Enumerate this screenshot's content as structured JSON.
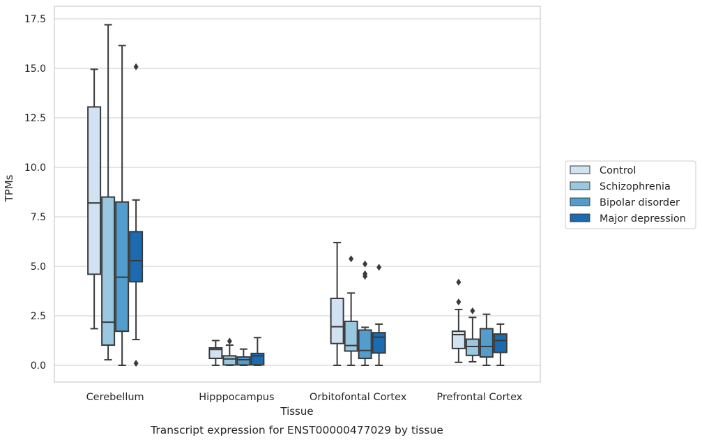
{
  "caption": "Transcript expression for ENST00000477029 by tissue",
  "chart_data": {
    "type": "box",
    "xlabel": "Tissue",
    "ylabel": "TPMs",
    "ylim": [
      -0.8,
      18.1
    ],
    "yticks": [
      0.0,
      2.5,
      5.0,
      7.5,
      10.0,
      12.5,
      15.0,
      17.5
    ],
    "ytick_labels": [
      "0.0",
      "2.5",
      "5.0",
      "7.5",
      "10.0",
      "12.5",
      "15.0",
      "17.5"
    ],
    "grid": "horizontal",
    "legend_position": "right",
    "categories": [
      "Cerebellum",
      "Hipppocampus",
      "Orbitofontal Cortex",
      "Prefrontal Cortex"
    ],
    "series": [
      {
        "name": "Control",
        "color": "#d1e3f3",
        "boxes": [
          {
            "whislo": 1.85,
            "q1": 4.6,
            "med": 8.2,
            "q3": 13.05,
            "whishi": 14.95,
            "fliers": []
          },
          {
            "whislo": 0.0,
            "q1": 0.35,
            "med": 0.8,
            "q3": 0.88,
            "whishi": 1.25,
            "fliers": []
          },
          {
            "whislo": 0.0,
            "q1": 1.1,
            "med": 1.95,
            "q3": 3.38,
            "whishi": 6.2,
            "fliers": []
          },
          {
            "whislo": 0.15,
            "q1": 0.85,
            "med": 1.55,
            "q3": 1.72,
            "whishi": 2.82,
            "fliers": [
              3.2,
              4.2
            ]
          }
        ]
      },
      {
        "name": "Schizophrenia",
        "color": "#9ac8e1",
        "boxes": [
          {
            "whislo": 0.28,
            "q1": 1.02,
            "med": 2.18,
            "q3": 8.5,
            "whishi": 17.2,
            "fliers": []
          },
          {
            "whislo": 0.0,
            "q1": 0.02,
            "med": 0.32,
            "q3": 0.48,
            "whishi": 1.02,
            "fliers": [
              1.22
            ]
          },
          {
            "whislo": 0.0,
            "q1": 0.72,
            "med": 1.0,
            "q3": 2.22,
            "whishi": 3.65,
            "fliers": [
              5.38
            ]
          },
          {
            "whislo": 0.18,
            "q1": 0.5,
            "med": 0.95,
            "q3": 1.32,
            "whishi": 2.42,
            "fliers": [
              2.75
            ]
          }
        ]
      },
      {
        "name": "Bipolar disorder",
        "color": "#529dcc",
        "boxes": [
          {
            "whislo": 0.0,
            "q1": 1.72,
            "med": 4.45,
            "q3": 8.25,
            "whishi": 16.15,
            "fliers": []
          },
          {
            "whislo": 0.0,
            "q1": 0.02,
            "med": 0.28,
            "q3": 0.42,
            "whishi": 0.82,
            "fliers": []
          },
          {
            "whislo": 0.0,
            "q1": 0.35,
            "med": 0.75,
            "q3": 1.78,
            "whishi": 1.92,
            "fliers": [
              4.5,
              4.62,
              5.12
            ]
          },
          {
            "whislo": 0.0,
            "q1": 0.42,
            "med": 0.95,
            "q3": 1.85,
            "whishi": 2.58,
            "fliers": []
          }
        ]
      },
      {
        "name": "Major depression",
        "color": "#1c6aaf",
        "boxes": [
          {
            "whislo": 1.3,
            "q1": 4.22,
            "med": 5.28,
            "q3": 6.75,
            "whishi": 8.35,
            "fliers": [
              0.1,
              15.08
            ]
          },
          {
            "whislo": 0.0,
            "q1": 0.02,
            "med": 0.48,
            "q3": 0.6,
            "whishi": 1.4,
            "fliers": []
          },
          {
            "whislo": 0.0,
            "q1": 0.62,
            "med": 1.42,
            "q3": 1.65,
            "whishi": 2.08,
            "fliers": [
              4.95
            ]
          },
          {
            "whislo": 0.0,
            "q1": 0.65,
            "med": 1.25,
            "q3": 1.58,
            "whishi": 2.08,
            "fliers": []
          }
        ]
      }
    ]
  }
}
